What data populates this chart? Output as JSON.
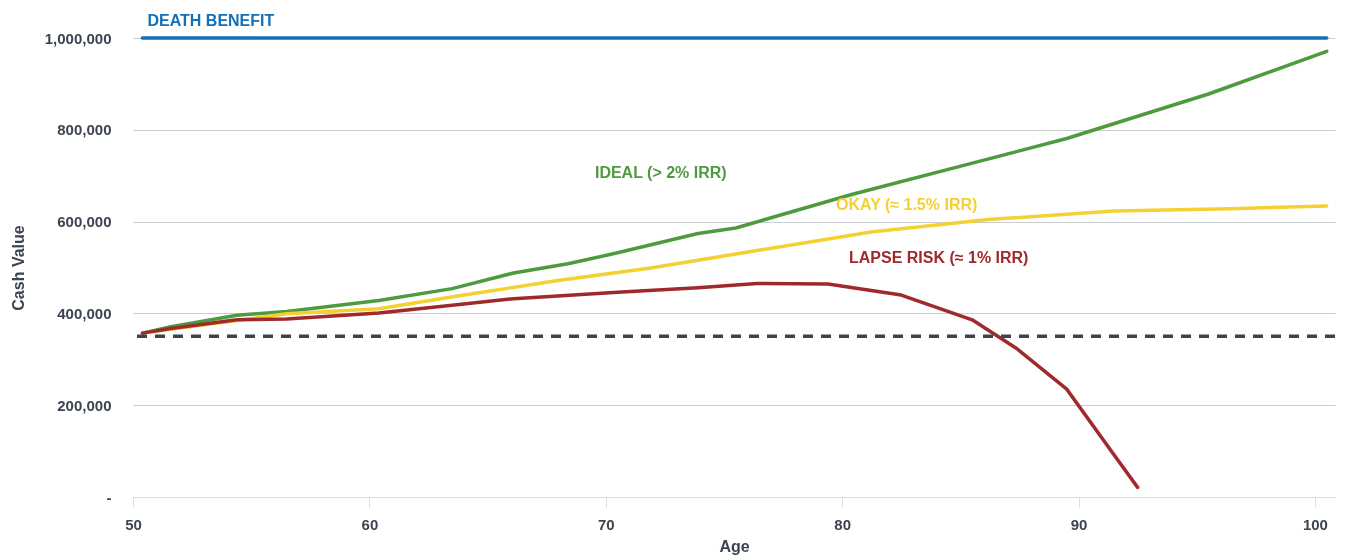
{
  "chart_data": {
    "type": "line",
    "xlabel": "Age",
    "ylabel": "Cash Value",
    "xlim": [
      50,
      100.85
    ],
    "xticks": [
      50,
      60,
      70,
      80,
      90,
      100
    ],
    "ylim": [
      0,
      1000000
    ],
    "yticks": [
      {
        "value": 0,
        "label": "-"
      },
      {
        "value": 200000,
        "label": "200,000"
      },
      {
        "value": 400000,
        "label": "400,000"
      },
      {
        "value": 600000,
        "label": "600,000"
      },
      {
        "value": 800000,
        "label": "800,000"
      },
      {
        "value": 1000000,
        "label": "1,000,000"
      }
    ],
    "grid": "y",
    "line_style": "solid",
    "marker": "none",
    "series": [
      {
        "name": "DEATH BENEFIT",
        "color": "#1170b8",
        "x": [
          50.4,
          100.5
        ],
        "values": [
          1000000,
          1000000
        ]
      },
      {
        "name": "IDEAL (> 2% IRR)",
        "color": "#4e9a3f",
        "x": [
          50.4,
          51.6,
          54.4,
          56.5,
          60.4,
          63.5,
          66.1,
          68.4,
          70.5,
          73.9,
          75.5,
          80.4,
          85.1,
          89.5,
          95.5,
          100.5
        ],
        "values": [
          357000,
          371000,
          396000,
          404000,
          428000,
          454000,
          488000,
          508000,
          532000,
          574000,
          586000,
          659000,
          722000,
          781000,
          878000,
          971000
        ]
      },
      {
        "name": "OKAY (≈ 1.5% IRR)",
        "color": "#f5d033",
        "x": [
          50.4,
          56.5,
          60.4,
          64.0,
          67.9,
          71.9,
          73.9,
          76.4,
          81.3,
          86.3,
          91.5,
          96.4,
          100.5
        ],
        "values": [
          357000,
          399000,
          410000,
          440000,
          471000,
          499000,
          516000,
          537000,
          578000,
          605000,
          623000,
          628000,
          634000
        ]
      },
      {
        "name": "LAPSE RISK (≈ 1% IRR)",
        "color": "#a0292b",
        "x": [
          50.4,
          51.6,
          54.4,
          56.5,
          60.4,
          63.5,
          66.1,
          70.5,
          73.9,
          76.4,
          79.4,
          82.5,
          85.5,
          87.4,
          89.5,
          91.4,
          92.5
        ],
        "values": [
          357000,
          367000,
          386000,
          388000,
          401000,
          418000,
          432000,
          446000,
          456000,
          465000,
          464000,
          440000,
          386000,
          323000,
          235000,
          99000,
          21000
        ]
      }
    ],
    "ref_lines": [
      {
        "axis": "y",
        "value": 350000,
        "color": "#3d4451",
        "line_style": "dashed"
      }
    ]
  }
}
